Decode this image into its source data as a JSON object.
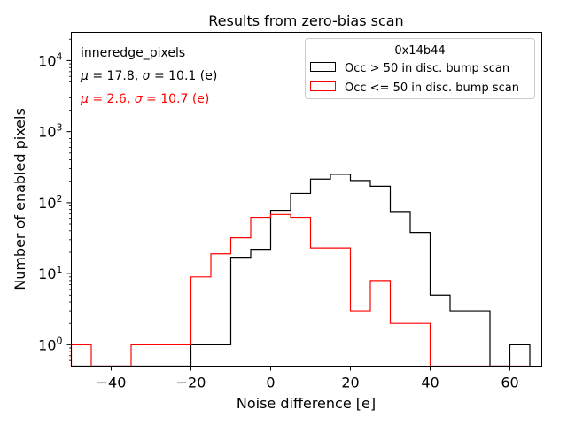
{
  "chart_data": {
    "type": "histogram",
    "title": "Results from zero-bias scan",
    "xlabel": "Noise difference [e]",
    "ylabel": "Number of enabled pixels",
    "xlim": [
      -50,
      68
    ],
    "ylim": [
      0.5,
      25000
    ],
    "yscale": "log",
    "grid": false,
    "x_ticks": [
      -40,
      -20,
      0,
      20,
      40,
      60
    ],
    "x_tick_labels": [
      "−40",
      "−20",
      "0",
      "20",
      "40",
      "60"
    ],
    "y_ticks": [
      1,
      10,
      100,
      1000,
      10000
    ],
    "y_tick_base": "10",
    "y_tick_exponents": [
      "0",
      "1",
      "2",
      "3",
      "4"
    ],
    "bin_edges": [
      -50,
      -45,
      -40,
      -35,
      -30,
      -25,
      -20,
      -15,
      -10,
      -5,
      0,
      5,
      10,
      15,
      20,
      25,
      30,
      35,
      40,
      45,
      50,
      55,
      60,
      65
    ],
    "legend": {
      "title": "0x14b44",
      "placement": "top-right"
    },
    "annotations": {
      "name": "inneredge_pixels",
      "stats": [
        {
          "mu_label": "μ",
          "mu_value": " = 17.8, ",
          "sigma_label": "σ",
          "sigma_value": " = 10.1 (e)",
          "color": "#000000"
        },
        {
          "mu_label": "μ",
          "mu_value": " = 2.6, ",
          "sigma_label": "σ",
          "sigma_value": " = 10.7 (e)",
          "color": "#ff0000"
        }
      ]
    },
    "series": [
      {
        "name": "Occ > 50 in disc. bump scan",
        "color": "#000000",
        "counts": [
          0,
          0,
          0,
          0,
          0,
          0,
          1,
          1,
          17,
          22,
          78,
          135,
          215,
          250,
          205,
          170,
          75,
          38,
          5,
          3,
          3,
          0,
          1
        ]
      },
      {
        "name": "Occ <= 50 in disc. bump scan",
        "color": "#ff0000",
        "counts": [
          1,
          0,
          0,
          1,
          1,
          1,
          9,
          19,
          32,
          62,
          68,
          62,
          23,
          23,
          3,
          8,
          2,
          2,
          0,
          0,
          0,
          0,
          0
        ]
      }
    ]
  }
}
